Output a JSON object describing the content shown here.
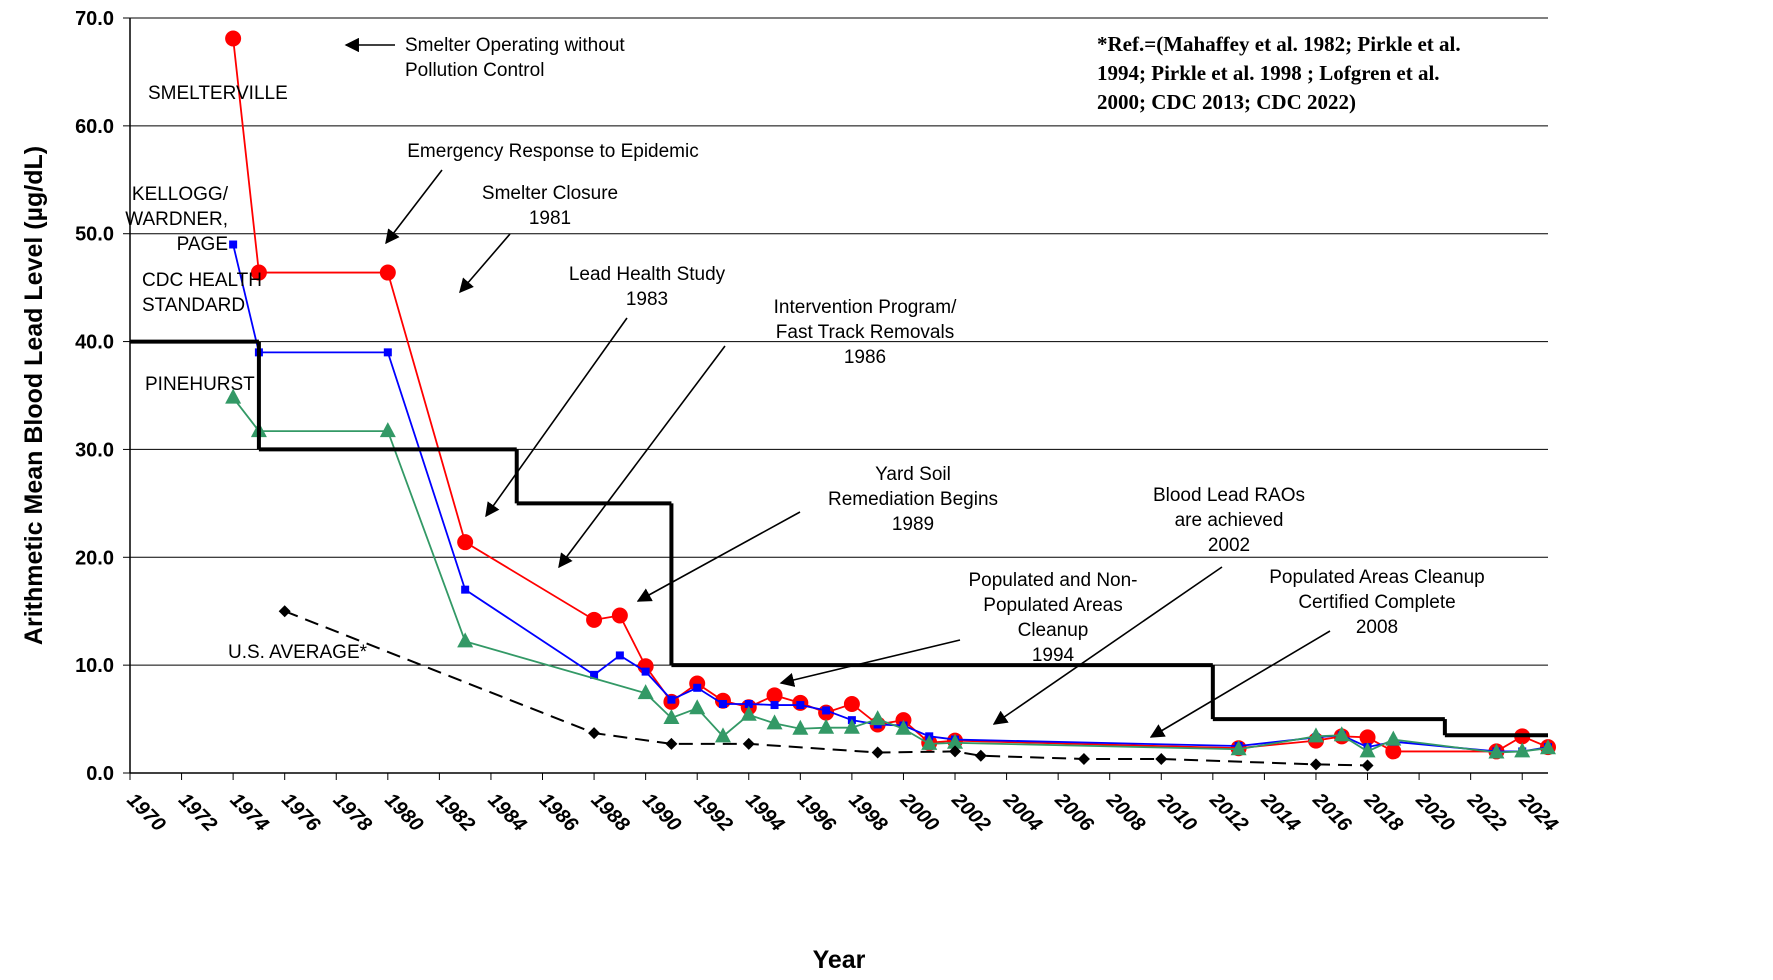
{
  "chart_data": {
    "type": "line",
    "xlabel": "Year",
    "ylabel": "Arithmetic Mean Blood Lead Level (µg/dL)",
    "xlim": [
      1970,
      2025
    ],
    "ylim": [
      0,
      70
    ],
    "xticks": [
      1970,
      1972,
      1974,
      1976,
      1978,
      1980,
      1982,
      1984,
      1986,
      1988,
      1990,
      1992,
      1994,
      1996,
      1998,
      2000,
      2002,
      2004,
      2006,
      2008,
      2010,
      2012,
      2014,
      2016,
      2018,
      2020,
      2022,
      2024
    ],
    "yticks": [
      {
        "value": 0,
        "label": "0.0"
      },
      {
        "value": 10,
        "label": "10.0"
      },
      {
        "value": 20,
        "label": "20.0"
      },
      {
        "value": 30,
        "label": "30.0"
      },
      {
        "value": 40,
        "label": "40.0"
      },
      {
        "value": 50,
        "label": "50.0"
      },
      {
        "value": 60,
        "label": "60.0"
      },
      {
        "value": 70,
        "label": "70.0"
      }
    ],
    "grid": true,
    "series": [
      {
        "name": "SMELTERVILLE",
        "color": "#ff0000",
        "marker": "circle",
        "x": [
          1974,
          1975,
          1980,
          1983,
          1988,
          1989,
          1990,
          1991,
          1992,
          1993,
          1994,
          1995,
          1996,
          1997,
          1998,
          1999,
          2000,
          2001,
          2002,
          2013,
          2016,
          2017,
          2018,
          2019,
          2023,
          2024,
          2025
        ],
        "values": [
          68.1,
          46.4,
          46.4,
          21.4,
          14.2,
          14.6,
          9.9,
          6.6,
          8.3,
          6.7,
          6.1,
          7.2,
          6.5,
          5.6,
          6.4,
          4.5,
          4.9,
          2.8,
          3.0,
          2.3,
          3.0,
          3.4,
          3.3,
          2.0,
          2.0,
          3.4,
          2.4
        ]
      },
      {
        "name": "KELLOGG/\nWARDNER,\nPAGE",
        "color": "#0000ff",
        "marker": "square",
        "x": [
          1974,
          1975,
          1980,
          1983,
          1988,
          1989,
          1990,
          1991,
          1992,
          1993,
          1994,
          1995,
          1996,
          1997,
          1998,
          1999,
          2000,
          2001,
          2002,
          2013,
          2016,
          2017,
          2018,
          2019,
          2023,
          2024,
          2025
        ],
        "values": [
          49.0,
          39.0,
          39.0,
          17.0,
          9.1,
          10.9,
          9.4,
          6.8,
          7.9,
          6.4,
          6.4,
          6.3,
          6.3,
          5.8,
          4.9,
          4.5,
          4.4,
          3.4,
          3.1,
          2.5,
          3.3,
          3.5,
          2.4,
          2.9,
          2.0,
          2.0,
          2.4
        ]
      },
      {
        "name": "PINEHURST",
        "color": "#339966",
        "marker": "triangle",
        "x": [
          1974,
          1975,
          1980,
          1983,
          1990,
          1991,
          1992,
          1993,
          1994,
          1995,
          1996,
          1997,
          1998,
          1999,
          2000,
          2001,
          2002,
          2013,
          2016,
          2017,
          2018,
          2019,
          2023,
          2024,
          2025
        ],
        "values": [
          34.8,
          31.7,
          31.7,
          12.2,
          7.4,
          5.1,
          6.0,
          3.4,
          5.4,
          4.6,
          4.1,
          4.2,
          4.2,
          5.0,
          4.1,
          2.7,
          2.8,
          2.2,
          3.4,
          3.5,
          2.0,
          3.1,
          1.9,
          2.0,
          2.3
        ]
      },
      {
        "name": "U.S. AVERAGE*",
        "color": "#000000",
        "marker": "diamond",
        "dash": true,
        "x": [
          1976,
          1988,
          1991,
          1994,
          1999,
          2002,
          2003,
          2007,
          2010,
          2016,
          2018
        ],
        "values": [
          15.0,
          3.7,
          2.7,
          2.7,
          1.9,
          2.0,
          1.6,
          1.3,
          1.3,
          0.8,
          0.7
        ]
      },
      {
        "name": "CDC HEALTH\nSTANDARD",
        "color": "#000000",
        "step": true,
        "x": [
          1970,
          1975,
          1985,
          1991,
          2012,
          2021
        ],
        "values": [
          40,
          30,
          25,
          10,
          5,
          3.5
        ]
      }
    ],
    "annotations": [
      "Smelter Operating without\nPollution Control",
      "Emergency Response to Epidemic",
      "Smelter Closure\n1981",
      "Lead Health Study\n1983",
      "Intervention Program/\nFast Track Removals\n1986",
      "Yard Soil\nRemediation Begins\n1989",
      "Populated and Non-\nPopulated Areas\nCleanup\n1994",
      "Blood Lead RAOs\nare achieved\n2002",
      "Populated Areas Cleanup\nCertified Complete\n2008"
    ],
    "reference": "*Ref.=(Mahaffey et al. 1982; Pirkle et al.\n1994; Pirkle et al. 1998 ; Lofgren et al.\n2000; CDC 2013; CDC 2022)"
  }
}
